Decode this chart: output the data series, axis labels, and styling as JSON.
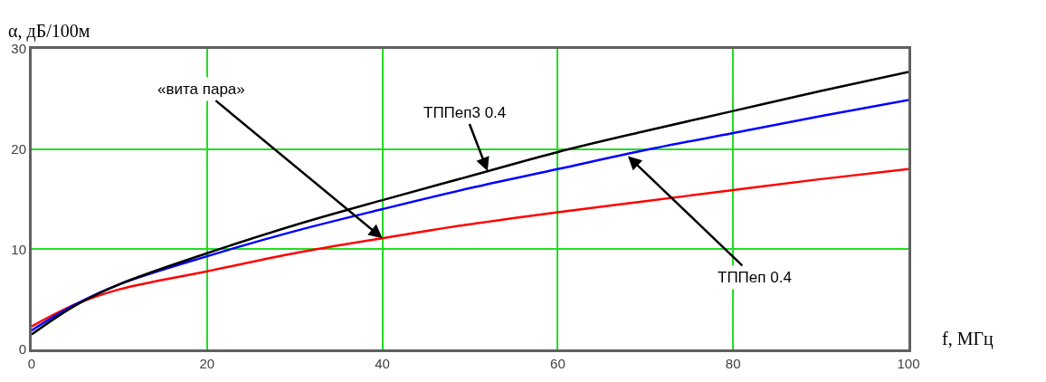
{
  "chart_data": {
    "type": "line",
    "xlabel": "f, МГц",
    "ylabel": "α, дБ/100м",
    "x": [
      0,
      5,
      10,
      20,
      30,
      40,
      50,
      60,
      70,
      80,
      90,
      100
    ],
    "xlim": [
      0,
      100
    ],
    "xticks": [
      0,
      20,
      40,
      60,
      80,
      100
    ],
    "ylim": [
      0,
      30
    ],
    "yticks": [
      0,
      10,
      20,
      30
    ],
    "grid": true,
    "series": [
      {
        "color": "#ff0000",
        "values": [
          2.3,
          4.5,
          6.0,
          7.8,
          9.6,
          11.1,
          12.5,
          13.7,
          14.8,
          15.9,
          17.0,
          18.0
        ]
      },
      {
        "color": "#0000ff",
        "values": [
          1.9,
          4.5,
          6.5,
          9.3,
          11.8,
          14.0,
          16.1,
          18.0,
          19.9,
          21.6,
          23.3,
          24.9
        ]
      },
      {
        "color": "#000000",
        "values": [
          1.5,
          4.4,
          6.5,
          9.6,
          12.4,
          14.9,
          17.3,
          19.7,
          21.8,
          23.8,
          25.8,
          27.7
        ]
      }
    ],
    "annotations": [
      {
        "text": "«вита пара»",
        "x": 40,
        "y": 11.1
      },
      {
        "text": "ТППеп3 0.4",
        "x": 52,
        "y": 17.8
      },
      {
        "text": "ТППеп 0.4",
        "x": 68,
        "y": 19.3
      }
    ]
  }
}
